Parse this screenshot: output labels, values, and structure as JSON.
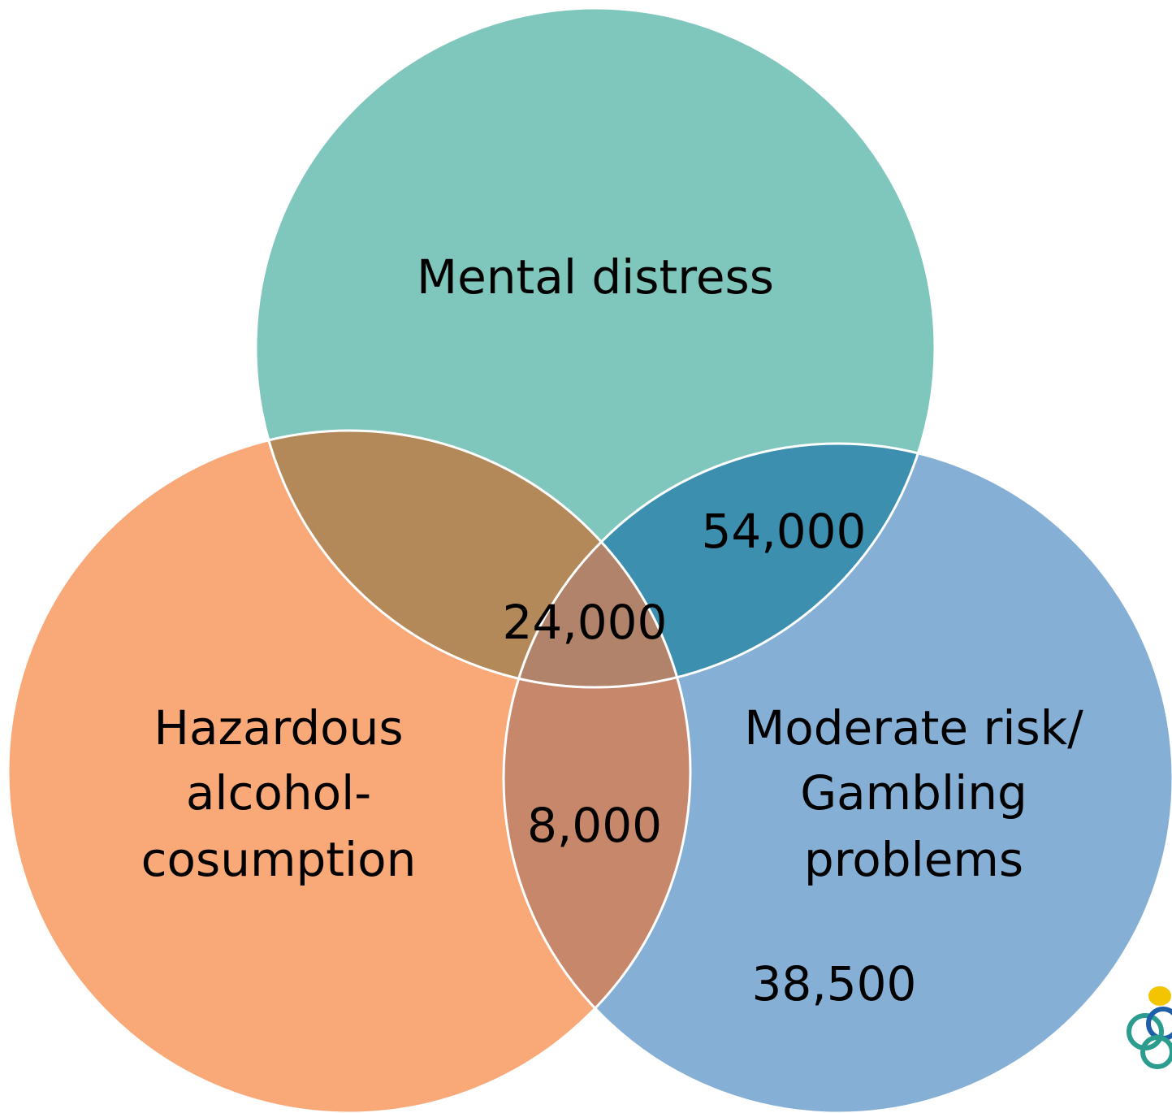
{
  "sets": [
    {
      "label": [
        "Mental distress"
      ]
    },
    {
      "label": [
        "Hazardous",
        "alcohol-",
        "cosumption"
      ]
    },
    {
      "label": [
        "Moderate risk/",
        "Gambling",
        "problems"
      ]
    }
  ],
  "regions": [
    {
      "label": "54,000"
    },
    {
      "label": "24,000"
    },
    {
      "label": "8,000"
    },
    {
      "label": "38,500"
    }
  ]
}
